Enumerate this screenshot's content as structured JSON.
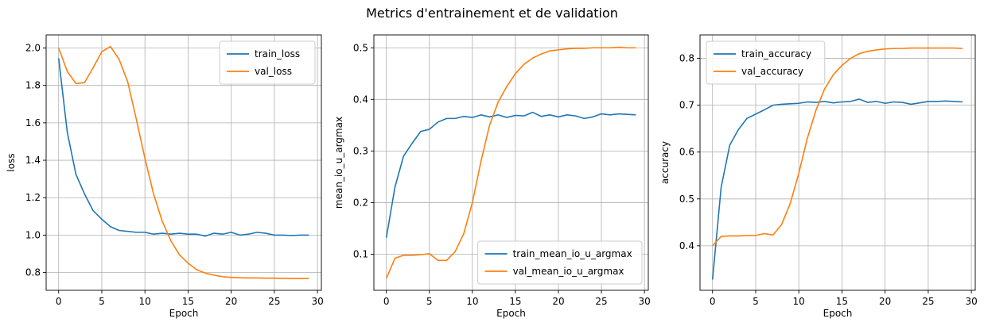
{
  "figure": {
    "suptitle": "Metrics d'entrainement et de validation"
  },
  "colors": {
    "train": "#1f77b4",
    "val": "#ff7f0e",
    "grid": "#b0b0b0"
  },
  "chart_data": [
    {
      "type": "line",
      "xlabel": "Epoch",
      "ylabel": "loss",
      "xlim": [
        -1.45,
        30.45
      ],
      "ylim": [
        0.705,
        2.07
      ],
      "xticks": [
        0,
        5,
        10,
        15,
        20,
        25,
        30
      ],
      "yticks": [
        0.8,
        1.0,
        1.2,
        1.4,
        1.6,
        1.8,
        2.0
      ],
      "ytick_decimals": 1,
      "grid": true,
      "legend_loc": "upper right",
      "x": [
        0,
        1,
        2,
        3,
        4,
        5,
        6,
        7,
        8,
        9,
        10,
        11,
        12,
        13,
        14,
        15,
        16,
        17,
        18,
        19,
        20,
        21,
        22,
        23,
        24,
        25,
        26,
        27,
        28,
        29
      ],
      "series": [
        {
          "name": "train_loss",
          "color": "#1f77b4",
          "values": [
            1.945,
            1.55,
            1.325,
            1.22,
            1.13,
            1.085,
            1.045,
            1.025,
            1.02,
            1.015,
            1.015,
            1.005,
            1.01,
            1.005,
            1.01,
            1.005,
            1.005,
            0.995,
            1.01,
            1.005,
            1.015,
            1.0,
            1.005,
            1.015,
            1.01,
            1.0,
            1.0,
            0.998,
            1.0,
            1.0
          ]
        },
        {
          "name": "val_loss",
          "color": "#ff7f0e",
          "values": [
            2.0,
            1.875,
            1.81,
            1.815,
            1.895,
            1.98,
            2.008,
            1.94,
            1.82,
            1.62,
            1.41,
            1.22,
            1.075,
            0.97,
            0.895,
            0.85,
            0.815,
            0.797,
            0.786,
            0.778,
            0.774,
            0.772,
            0.771,
            0.771,
            0.77,
            0.77,
            0.769,
            0.768,
            0.768,
            0.768
          ]
        }
      ]
    },
    {
      "type": "line",
      "xlabel": "Epoch",
      "ylabel": "mean_io_u_argmax",
      "xlim": [
        -1.45,
        30.45
      ],
      "ylim": [
        0.03,
        0.525
      ],
      "xticks": [
        0,
        5,
        10,
        15,
        20,
        25,
        30
      ],
      "yticks": [
        0.1,
        0.2,
        0.3,
        0.4,
        0.5
      ],
      "ytick_decimals": 1,
      "grid": true,
      "legend_loc": "lower right",
      "x": [
        0,
        1,
        2,
        3,
        4,
        5,
        6,
        7,
        8,
        9,
        10,
        11,
        12,
        13,
        14,
        15,
        16,
        17,
        18,
        19,
        20,
        21,
        22,
        23,
        24,
        25,
        26,
        27,
        28,
        29
      ],
      "series": [
        {
          "name": "train_mean_io_u_argmax",
          "color": "#1f77b4",
          "values": [
            0.132,
            0.23,
            0.29,
            0.315,
            0.338,
            0.342,
            0.356,
            0.363,
            0.363,
            0.367,
            0.365,
            0.37,
            0.366,
            0.37,
            0.365,
            0.369,
            0.368,
            0.375,
            0.367,
            0.37,
            0.366,
            0.37,
            0.368,
            0.363,
            0.366,
            0.372,
            0.37,
            0.372,
            0.371,
            0.37
          ]
        },
        {
          "name": "val_mean_io_u_argmax",
          "color": "#ff7f0e",
          "values": [
            0.053,
            0.092,
            0.098,
            0.098,
            0.099,
            0.101,
            0.088,
            0.088,
            0.105,
            0.14,
            0.2,
            0.28,
            0.35,
            0.395,
            0.425,
            0.45,
            0.468,
            0.48,
            0.488,
            0.494,
            0.496,
            0.498,
            0.499,
            0.499,
            0.5,
            0.5,
            0.5,
            0.501,
            0.5,
            0.5
          ]
        }
      ]
    },
    {
      "type": "line",
      "xlabel": "Epoch",
      "ylabel": "accuracy",
      "xlim": [
        -1.45,
        30.45
      ],
      "ylim": [
        0.305,
        0.85
      ],
      "xticks": [
        0,
        5,
        10,
        15,
        20,
        25,
        30
      ],
      "yticks": [
        0.4,
        0.5,
        0.6,
        0.7,
        0.8
      ],
      "ytick_decimals": 1,
      "grid": true,
      "legend_loc": "upper left",
      "x": [
        0,
        1,
        2,
        3,
        4,
        5,
        6,
        7,
        8,
        9,
        10,
        11,
        12,
        13,
        14,
        15,
        16,
        17,
        18,
        19,
        20,
        21,
        22,
        23,
        24,
        25,
        26,
        27,
        28,
        29
      ],
      "series": [
        {
          "name": "train_accuracy",
          "color": "#1f77b4",
          "values": [
            0.328,
            0.525,
            0.615,
            0.648,
            0.672,
            0.681,
            0.69,
            0.7,
            0.702,
            0.703,
            0.704,
            0.707,
            0.706,
            0.708,
            0.705,
            0.707,
            0.708,
            0.713,
            0.706,
            0.708,
            0.704,
            0.707,
            0.706,
            0.702,
            0.705,
            0.708,
            0.708,
            0.709,
            0.708,
            0.707
          ]
        },
        {
          "name": "val_accuracy",
          "color": "#ff7f0e",
          "values": [
            0.4,
            0.42,
            0.421,
            0.421,
            0.422,
            0.422,
            0.426,
            0.423,
            0.445,
            0.49,
            0.555,
            0.63,
            0.69,
            0.735,
            0.765,
            0.785,
            0.8,
            0.81,
            0.815,
            0.818,
            0.82,
            0.821,
            0.821,
            0.822,
            0.822,
            0.822,
            0.822,
            0.822,
            0.822,
            0.821
          ]
        }
      ]
    }
  ]
}
